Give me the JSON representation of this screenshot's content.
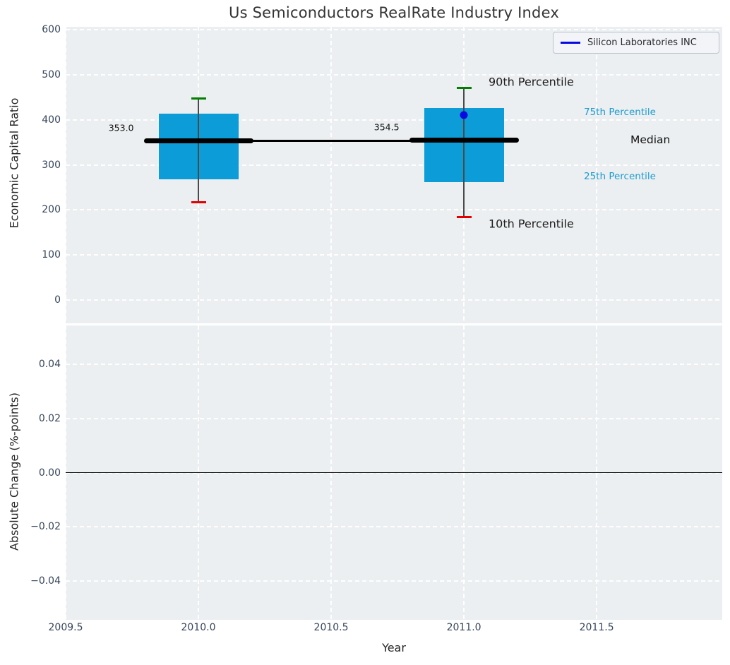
{
  "title": "Us Semiconductors RealRate Industry Index",
  "legend": {
    "label": "Silicon Laboratories INC",
    "line_color": "#0808e0"
  },
  "chart_data": {
    "type": "boxplot",
    "title": "Us Semiconductors RealRate Industry Index",
    "xlabel": "Year",
    "xlim": [
      2009.5,
      2011.973
    ],
    "xticks": [
      {
        "label": "2009.5",
        "value": 2009.5
      },
      {
        "label": "2010.0",
        "value": 2010.0
      },
      {
        "label": "2010.5",
        "value": 2010.5
      },
      {
        "label": "2011.0",
        "value": 2011.0
      },
      {
        "label": "2011.5",
        "value": 2011.5
      }
    ],
    "panels": [
      {
        "ylabel": "Economic Capital Ratio",
        "ylim": [
          -52,
          606.6
        ],
        "yticks": [
          {
            "label": "0",
            "value": 0
          },
          {
            "label": "100",
            "value": 100
          },
          {
            "label": "200",
            "value": 200
          },
          {
            "label": "300",
            "value": 300
          },
          {
            "label": "400",
            "value": 400
          },
          {
            "label": "500",
            "value": 500
          },
          {
            "label": "600",
            "value": 600
          }
        ],
        "boxes": [
          {
            "x": 2010,
            "p10": 217,
            "p25": 268,
            "median": 353.0,
            "p75": 413,
            "p90": 448,
            "label": "353.0"
          },
          {
            "x": 2011,
            "p10": 184,
            "p25": 261,
            "median": 354.5,
            "p75": 426,
            "p90": 471,
            "label": "354.5"
          }
        ],
        "series": [
          {
            "name": "Silicon Laboratories INC",
            "points": [
              {
                "x": 2011,
                "y": 410
              }
            ]
          }
        ],
        "annotations": {
          "p90": "90th Percentile",
          "p10": "10th Percentile",
          "p75": "75th Percentile",
          "p25": "25th Percentile",
          "median": "Median"
        }
      },
      {
        "ylabel": "Absolute Change (%-points)",
        "ylim": [
          -0.05433,
          0.05433
        ],
        "yticks": [
          {
            "label": "0.04",
            "value": 0.04
          },
          {
            "label": "0.02",
            "value": 0.02
          },
          {
            "label": "0.00",
            "value": 0.0
          },
          {
            "label": "−0.02",
            "value": -0.02
          },
          {
            "label": "−0.04",
            "value": -0.04
          }
        ],
        "zero_line": 0.0
      }
    ],
    "colors": {
      "box_fill": "#0c9dd9",
      "whisker": "#4a4a4a",
      "cap_top": "#007f00",
      "cap_bottom": "#e50000",
      "median_line": "#000000",
      "series_point": "#0808e0",
      "annotation_blue": "#1d9bd1",
      "panel_background": "#eceff1"
    },
    "grid": true,
    "legend_position": "upper right"
  }
}
